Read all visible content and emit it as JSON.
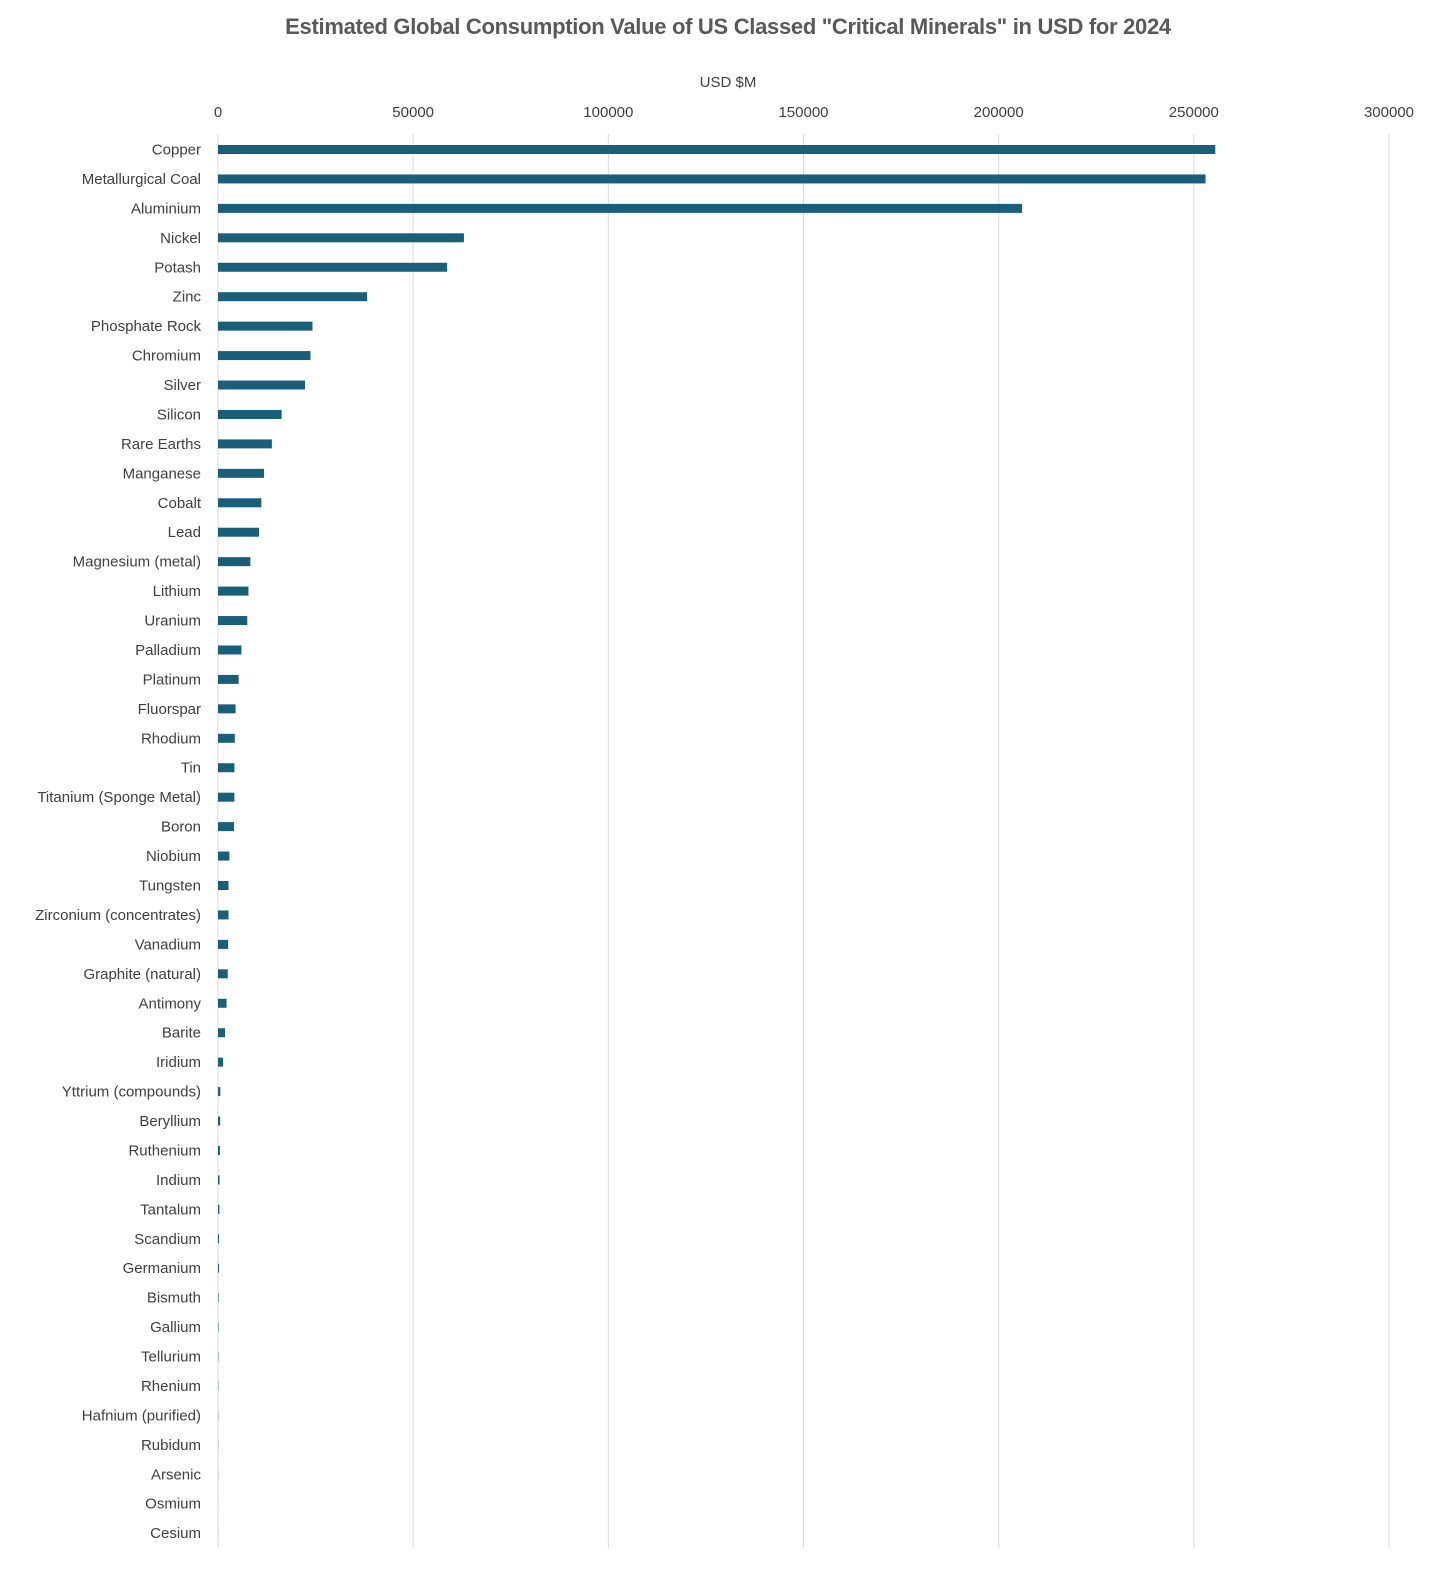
{
  "chart_data": {
    "type": "bar",
    "orientation": "horizontal",
    "title": "Estimated Global Consumption Value of US Classed \"Critical Minerals\" in USD for 2024",
    "xlabel": "USD $M",
    "ylabel": "",
    "xlim": [
      0,
      300000
    ],
    "xticks": [
      "0",
      "50000",
      "100000",
      "150000",
      "200000",
      "250000",
      "300000"
    ],
    "x_axis_position": "top",
    "grid": true,
    "bar_color": "#1a5f7a",
    "grid_color": "#d9d9d9",
    "categories": [
      "Copper",
      "Metallurgical Coal",
      "Aluminium",
      "Nickel",
      "Potash",
      "Zinc",
      "Phosphate Rock",
      "Chromium",
      "Silver",
      "Silicon",
      "Rare Earths",
      "Manganese",
      "Cobalt",
      "Lead",
      "Magnesium (metal)",
      "Lithium",
      "Uranium",
      "Palladium",
      "Platinum",
      "Fluorspar",
      "Rhodium",
      "Tin",
      "Titanium (Sponge Metal)",
      "Boron",
      "Niobium",
      "Tungsten",
      "Zirconium  (concentrates)",
      "Vanadium",
      "Graphite (natural)",
      "Antimony",
      "Barite",
      "Iridium",
      "Yttrium (compounds)",
      "Beryllium",
      "Ruthenium",
      "Indium",
      "Tantalum",
      "Scandium",
      "Germanium",
      "Bismuth",
      "Gallium",
      "Tellurium",
      "Rhenium",
      "Hafnium (purified)",
      "Rubidum",
      "Arsenic",
      "Osmium",
      "Cesium"
    ],
    "values": [
      255500,
      253000,
      206000,
      63000,
      58700,
      38200,
      24200,
      23700,
      22300,
      16300,
      13800,
      11800,
      11100,
      10500,
      8300,
      7800,
      7500,
      6000,
      5300,
      4500,
      4300,
      4200,
      4200,
      4100,
      2900,
      2700,
      2700,
      2600,
      2500,
      2200,
      1800,
      1300,
      600,
      550,
      500,
      400,
      350,
      250,
      250,
      150,
      120,
      100,
      80,
      60,
      50,
      40,
      30,
      20
    ]
  }
}
